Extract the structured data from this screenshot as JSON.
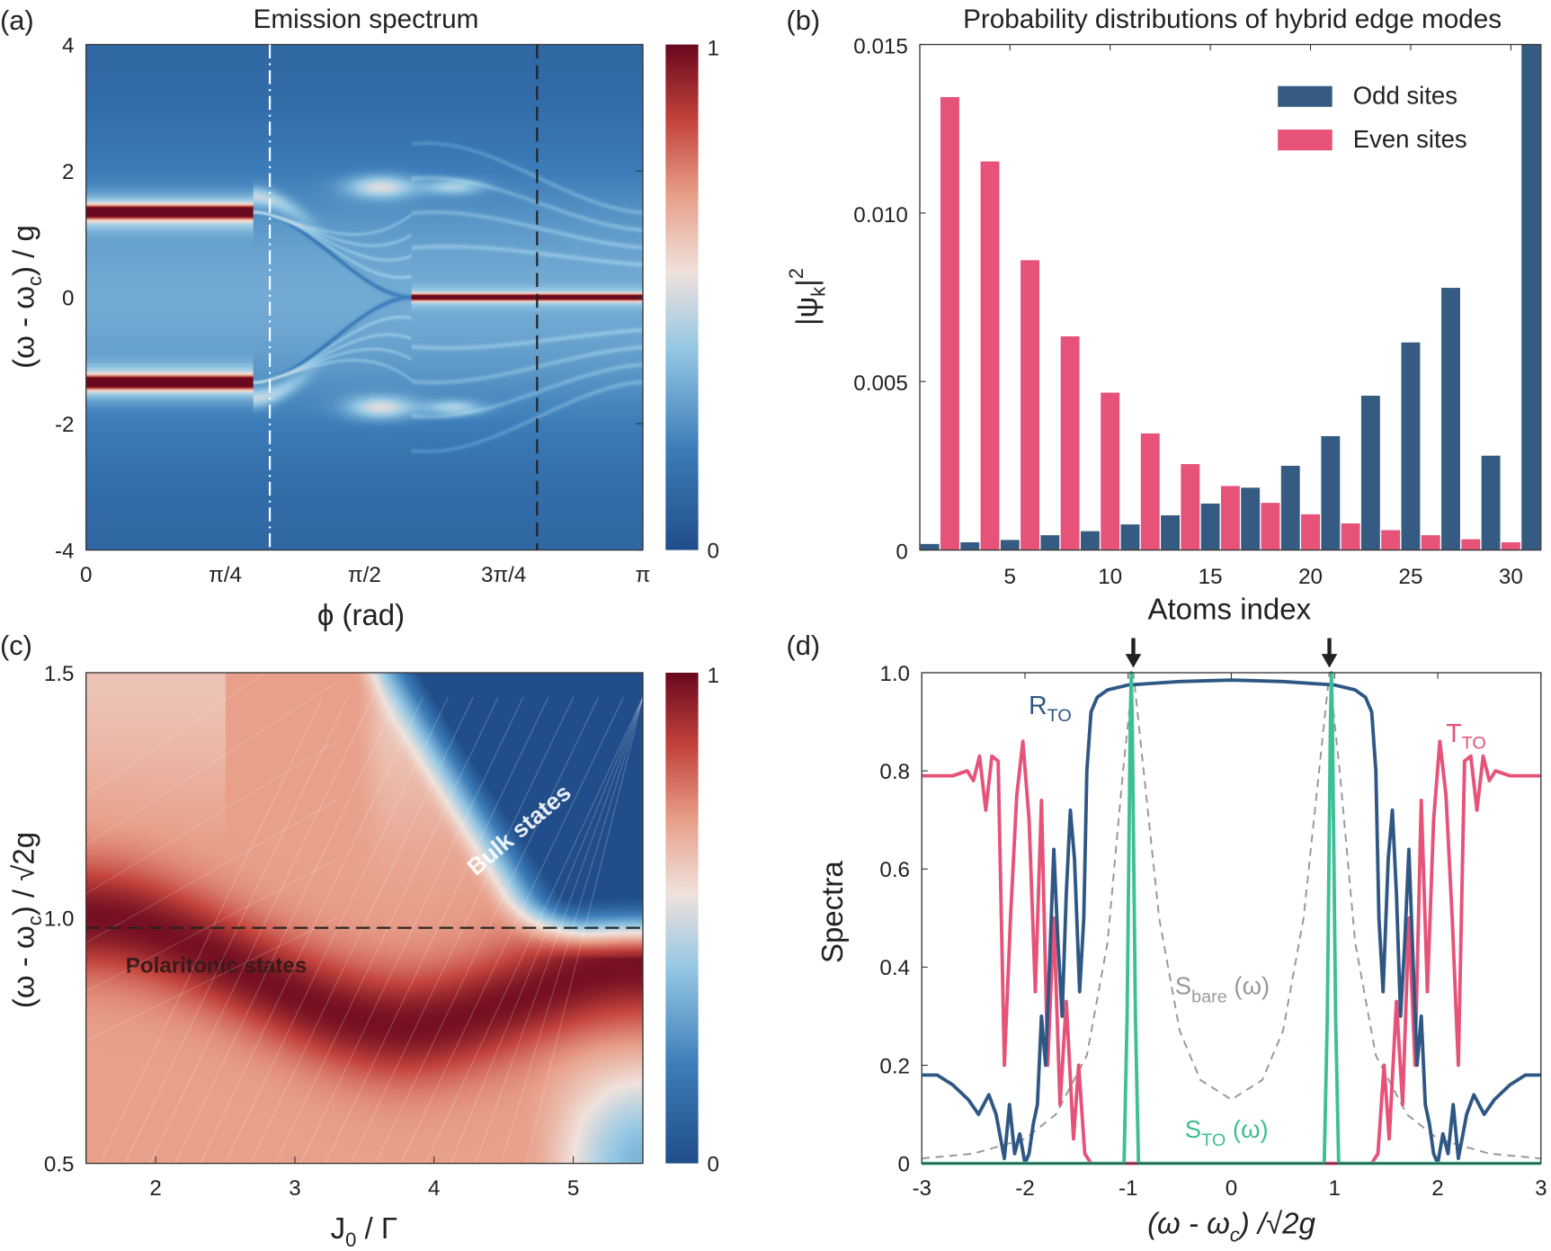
{
  "chart_data": [
    {
      "panel": "(a)",
      "type": "heatmap",
      "title": "Emission spectrum",
      "xlabel": "ϕ (rad)",
      "ylabel": {
        "pre": "(ω - ω",
        "sub": "c",
        "post": ") / g"
      },
      "xlim": [
        "0",
        "π"
      ],
      "ylim": [
        -4,
        4
      ],
      "xticks": [
        "0",
        "π/4",
        "π/2",
        "3π/4",
        "π"
      ],
      "yticks": [
        "4",
        "2",
        "0",
        "-2",
        "-4"
      ],
      "colorbar": {
        "range": [
          0,
          1
        ],
        "ticks": [
          "1",
          "0"
        ],
        "colormap": "red-blue diverging"
      },
      "reference_lines": [
        {
          "style": "dash-dot",
          "color": "#ffffff",
          "x_fraction_of_pi": 0.33
        },
        {
          "style": "dashed",
          "color": "#222222",
          "x_fraction_of_pi": 0.81
        }
      ],
      "features": {
        "polariton_branch_energy": 1.35,
        "merge_phase_fraction_of_pi": 0.58
      }
    },
    {
      "panel": "(b)",
      "type": "bar",
      "title": "Probability distributions of hybrid edge modes",
      "xlabel": "Atoms index",
      "ylabel": {
        "pre": "|ψ",
        "sub": "k",
        "post": "|",
        "sup": "2"
      },
      "xlim": [
        0.5,
        31.5
      ],
      "ylim": [
        0,
        0.015
      ],
      "xticks": [
        "5",
        "10",
        "15",
        "20",
        "25",
        "30"
      ],
      "xtick_values": [
        5,
        10,
        15,
        20,
        25,
        30
      ],
      "yticks": [
        "0.015",
        "0.010",
        "0.005",
        "0"
      ],
      "ytick_values": [
        0.015,
        0.01,
        0.005,
        0
      ],
      "legend": "top-right",
      "series": [
        {
          "name": "Odd sites",
          "color": "#365b82",
          "x": [
            1,
            3,
            5,
            7,
            9,
            11,
            13,
            15,
            17,
            19,
            21,
            23,
            25,
            27,
            29,
            31
          ],
          "values": [
            0.00018,
            0.00023,
            0.0003,
            0.00044,
            0.00056,
            0.00076,
            0.00103,
            0.00138,
            0.00185,
            0.0025,
            0.00338,
            0.00458,
            0.00616,
            0.00778,
            0.0028,
            0.0153
          ]
        },
        {
          "name": "Even sites",
          "color": "#e65278",
          "x": [
            2,
            4,
            6,
            8,
            10,
            12,
            14,
            16,
            18,
            20,
            22,
            24,
            26,
            28,
            30
          ],
          "values": [
            0.01344,
            0.01153,
            0.0086,
            0.00634,
            0.00467,
            0.00346,
            0.00255,
            0.0019,
            0.0014,
            0.00106,
            0.00079,
            0.00059,
            0.00044,
            0.00032,
            0.00023
          ]
        }
      ]
    },
    {
      "panel": "(c)",
      "type": "heatmap",
      "xlabel": {
        "pre": "J",
        "sub": "0",
        "post": " / Γ"
      },
      "ylabel": {
        "pre": "(ω - ω",
        "sub": "c",
        "post": ") / √2g"
      },
      "xlim": [
        1.5,
        5.5
      ],
      "ylim": [
        0.5,
        1.5
      ],
      "xticks": [
        "2",
        "3",
        "4",
        "5"
      ],
      "xtick_values": [
        2,
        3,
        4,
        5
      ],
      "yticks": [
        "1.5",
        "1.0",
        "0.5"
      ],
      "ytick_values": [
        1.5,
        1.0,
        0.5
      ],
      "colorbar": {
        "range": [
          0,
          1
        ],
        "ticks": [
          "1",
          "0"
        ]
      },
      "reference_lines": [
        {
          "style": "dashed",
          "color": "#222222",
          "y": 0.98
        }
      ],
      "annotations": [
        "Bulk states",
        "Polaritonic states"
      ]
    },
    {
      "panel": "(d)",
      "type": "line",
      "xlabel": {
        "pre": "(ω - ω",
        "sub": "c",
        "post": ") /√2g"
      },
      "ylabel": "Spectra",
      "xlim": [
        -3,
        3
      ],
      "ylim": [
        0,
        1.0
      ],
      "xticks": [
        "-3",
        "-2",
        "-1",
        "0",
        "1",
        "2",
        "3"
      ],
      "xtick_values": [
        -3,
        -2,
        -1,
        0,
        1,
        2,
        3
      ],
      "yticks": [
        "1.0",
        "0.8",
        "0.6",
        "0.4",
        "0.2",
        "0"
      ],
      "ytick_values": [
        1.0,
        0.8,
        0.6,
        0.4,
        0.2,
        0
      ],
      "arrows_at_x": [
        -0.95,
        0.95
      ],
      "series": [
        {
          "name": "R_TO",
          "label": {
            "pre": "R",
            "sub": "TO"
          },
          "color": "#2f5784",
          "style": "solid",
          "x_half": [
            0,
            0.5,
            1.0,
            1.2,
            1.3,
            1.36,
            1.4,
            1.43,
            1.47,
            1.52,
            1.56,
            1.6,
            1.64,
            1.68,
            1.72,
            1.76,
            1.8,
            1.84,
            1.88,
            1.92,
            1.96,
            2.0,
            2.05,
            2.1,
            2.15,
            2.2,
            2.28,
            2.35,
            2.45,
            2.55,
            2.7,
            2.85,
            3.0
          ],
          "y_half": [
            0.985,
            0.982,
            0.975,
            0.965,
            0.95,
            0.92,
            0.8,
            0.5,
            0.35,
            0.62,
            0.72,
            0.55,
            0.3,
            0.45,
            0.64,
            0.42,
            0.2,
            0.3,
            0.12,
            0.08,
            0.02,
            0.0,
            0.06,
            0.02,
            0.12,
            0.01,
            0.1,
            0.14,
            0.1,
            0.13,
            0.16,
            0.18,
            0.18
          ],
          "symmetric": true
        },
        {
          "name": "T_TO",
          "label": {
            "pre": "T",
            "sub": "TO"
          },
          "color": "#e65278",
          "style": "solid",
          "x_half": [
            0,
            1.36,
            1.42,
            1.48,
            1.53,
            1.6,
            1.66,
            1.72,
            1.78,
            1.84,
            1.9,
            1.96,
            2.02,
            2.08,
            2.14,
            2.2,
            2.26,
            2.32,
            2.38,
            2.44,
            2.5,
            2.56,
            2.7,
            2.85,
            3.0
          ],
          "y_half": [
            0,
            0,
            0.02,
            0.2,
            0.05,
            0.33,
            0.12,
            0.5,
            0.2,
            0.74,
            0.35,
            0.7,
            0.86,
            0.75,
            0.5,
            0.2,
            0.82,
            0.83,
            0.72,
            0.83,
            0.78,
            0.8,
            0.79,
            0.79,
            0.79
          ],
          "symmetric": true
        },
        {
          "name": "S_bare(ω)",
          "label": {
            "pre": "S",
            "sub": "bare",
            "post": " (ω)"
          },
          "color": "#999999",
          "style": "dashed",
          "x_half": [
            0,
            0.3,
            0.5,
            0.7,
            0.85,
            0.95,
            1.05,
            1.2,
            1.4,
            1.7,
            2.0,
            2.5,
            3.0
          ],
          "y_half": [
            0.13,
            0.17,
            0.27,
            0.5,
            0.8,
            1.0,
            0.8,
            0.45,
            0.22,
            0.1,
            0.05,
            0.02,
            0.01
          ],
          "symmetric": true
        },
        {
          "name": "S_TO(ω)",
          "label": {
            "pre": "S",
            "sub": "TO",
            "post": " (ω)"
          },
          "color": "#3dbf95",
          "style": "solid",
          "x_half": [
            0,
            0.9,
            0.93,
            0.96,
            0.97,
            0.98,
            1.01,
            1.04,
            3.0
          ],
          "y_half": [
            0,
            0,
            0.3,
            0.9,
            1.0,
            0.9,
            0.3,
            0,
            0
          ],
          "symmetric": true
        }
      ]
    }
  ],
  "panel_labels": [
    "(a)",
    "(b)",
    "(c)",
    "(d)"
  ]
}
